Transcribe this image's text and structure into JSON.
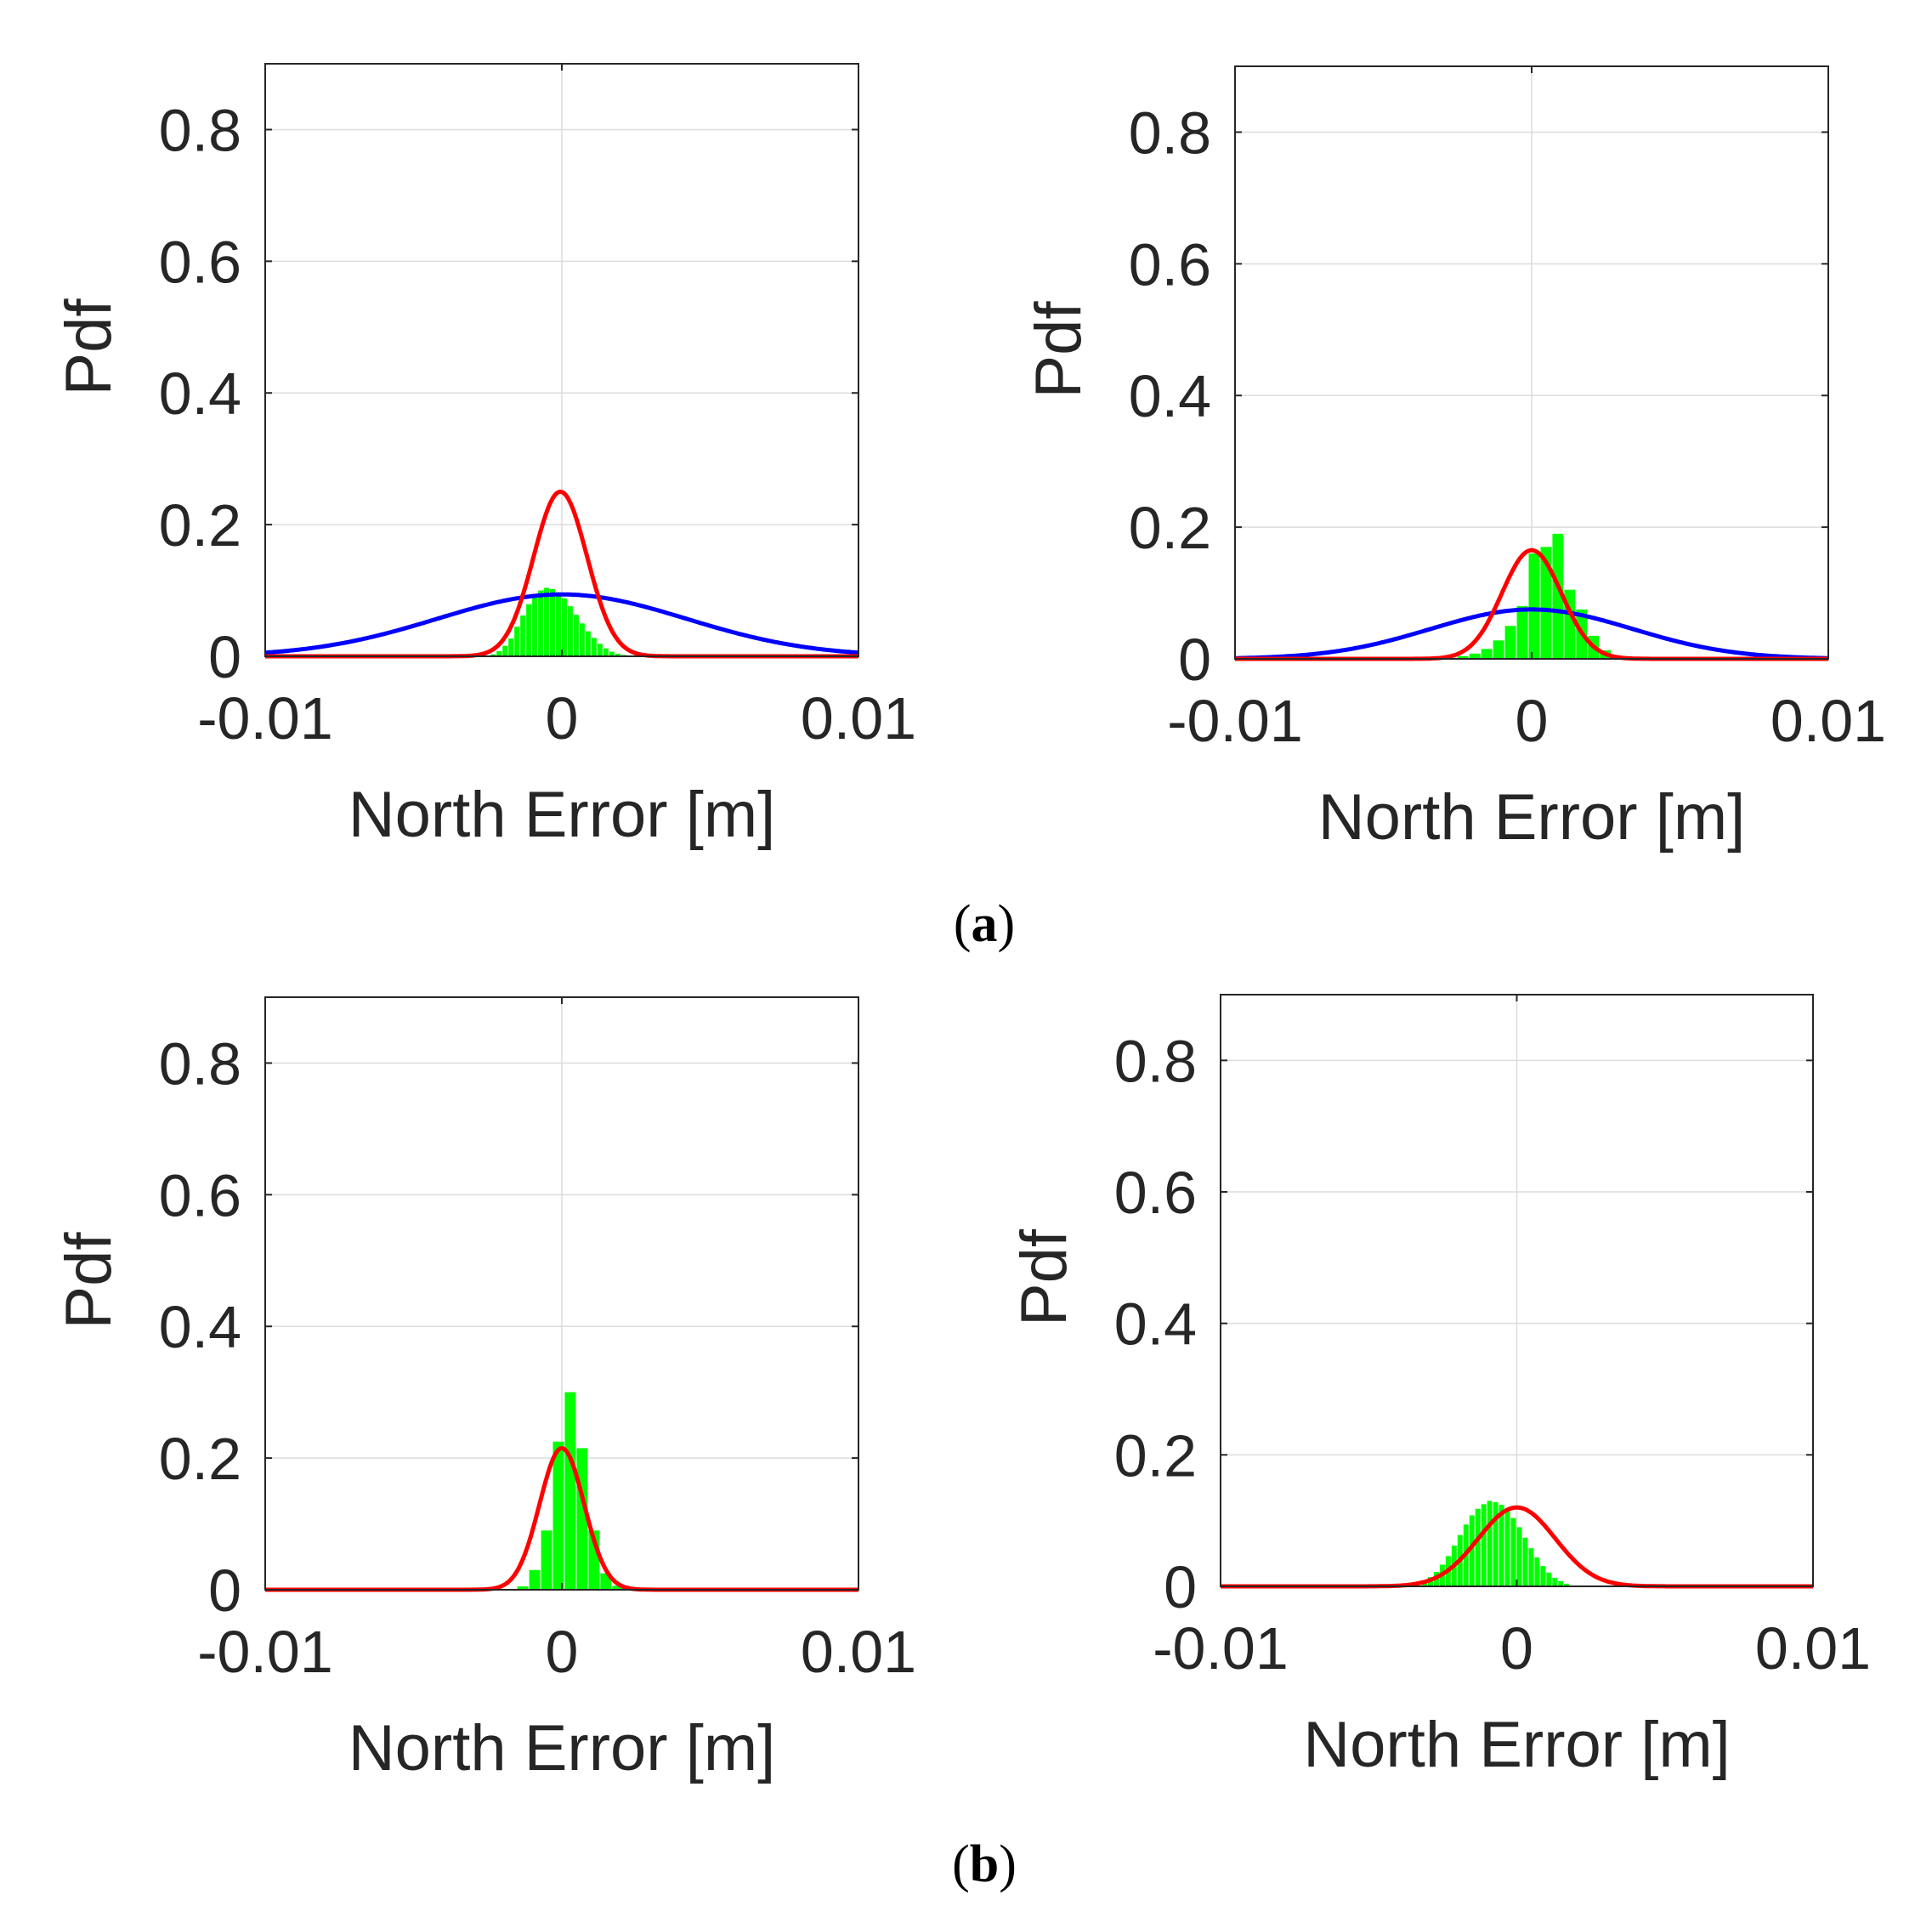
{
  "colors": {
    "histogram": "#00ff00",
    "fit_blue": "#0000ff",
    "fit_red": "#ff0000",
    "grid": "#dcdcdc",
    "axis": "#262626",
    "text": "#262626"
  },
  "captions": {
    "a": {
      "open": "(",
      "letter": "a",
      "close": ")"
    },
    "b": {
      "open": "(",
      "letter": "b",
      "close": ")"
    }
  },
  "chart_data": [
    {
      "type": "histogram",
      "panel": "a-left",
      "title": "",
      "xlabel": "North Error [m]",
      "ylabel": "Pdf",
      "xlim": [
        -0.01,
        0.01
      ],
      "ylim": [
        0,
        0.9
      ],
      "xticks": [
        -0.01,
        0,
        0.01
      ],
      "xtick_labels": [
        "-0.01",
        "0",
        "0.01"
      ],
      "yticks": [
        0,
        0.2,
        0.4,
        0.6,
        0.8
      ],
      "ytick_labels": [
        "0",
        "0.2",
        "0.4",
        "0.6",
        "0.8"
      ],
      "grid": true,
      "bins": {
        "start": -0.0024,
        "width": 0.0002,
        "values": [
          0.003,
          0.008,
          0.016,
          0.027,
          0.045,
          0.062,
          0.079,
          0.093,
          0.1,
          0.104,
          0.102,
          0.097,
          0.088,
          0.076,
          0.063,
          0.05,
          0.038,
          0.028,
          0.019,
          0.012,
          0.007,
          0.004,
          0.002,
          0.001
        ]
      },
      "series": [
        {
          "name": "blue-fit",
          "color": "#0000ff",
          "mean": 0.0,
          "sigma": 0.0042,
          "peak": 0.094
        },
        {
          "name": "red-fit",
          "color": "#ff0000",
          "mean": -5e-05,
          "sigma": 0.0009,
          "peak": 0.25
        }
      ]
    },
    {
      "type": "histogram",
      "panel": "a-right",
      "title": "",
      "xlabel": "North Error [m]",
      "ylabel": "Pdf",
      "xlim": [
        -0.01,
        0.01
      ],
      "ylim": [
        0,
        0.9
      ],
      "xticks": [
        -0.01,
        0,
        0.01
      ],
      "xtick_labels": [
        "-0.01",
        "0",
        "0.01"
      ],
      "yticks": [
        0,
        0.2,
        0.4,
        0.6,
        0.8
      ],
      "ytick_labels": [
        "0",
        "0.2",
        "0.4",
        "0.6",
        "0.8"
      ],
      "grid": true,
      "bins": {
        "start": -0.0025,
        "width": 0.0004,
        "values": [
          0.004,
          0.008,
          0.015,
          0.028,
          0.05,
          0.08,
          0.16,
          0.17,
          0.19,
          0.105,
          0.075,
          0.035,
          0.013,
          0.004
        ]
      },
      "series": [
        {
          "name": "blue-fit",
          "color": "#0000ff",
          "mean": 0.0,
          "sigma": 0.0034,
          "peak": 0.075
        },
        {
          "name": "red-fit",
          "color": "#ff0000",
          "mean": 0.0,
          "sigma": 0.001,
          "peak": 0.165
        }
      ]
    },
    {
      "type": "histogram",
      "panel": "b-left",
      "title": "",
      "xlabel": "North Error [m]",
      "ylabel": "Pdf",
      "xlim": [
        -0.01,
        0.01
      ],
      "ylim": [
        0,
        0.9
      ],
      "xticks": [
        -0.01,
        0,
        0.01
      ],
      "xtick_labels": [
        "-0.01",
        "0",
        "0.01"
      ],
      "yticks": [
        0,
        0.2,
        0.4,
        0.6,
        0.8
      ],
      "ytick_labels": [
        "0",
        "0.2",
        "0.4",
        "0.6",
        "0.8"
      ],
      "grid": true,
      "bins": {
        "start": -0.0015,
        "width": 0.0004,
        "values": [
          0.005,
          0.03,
          0.09,
          0.225,
          0.3,
          0.215,
          0.09,
          0.025,
          0.006
        ]
      },
      "series": [
        {
          "name": "red-fit",
          "color": "#ff0000",
          "mean": 0.0,
          "sigma": 0.00075,
          "peak": 0.215
        }
      ]
    },
    {
      "type": "histogram",
      "panel": "b-right",
      "title": "",
      "xlabel": "North Error [m]",
      "ylabel": "Pdf",
      "xlim": [
        -0.01,
        0.01
      ],
      "ylim": [
        0,
        0.9
      ],
      "xticks": [
        -0.01,
        0,
        0.01
      ],
      "xtick_labels": [
        "-0.01",
        "0",
        "0.01"
      ],
      "yticks": [
        0,
        0.2,
        0.4,
        0.6,
        0.8
      ],
      "ytick_labels": [
        "0",
        "0.2",
        "0.4",
        "0.6",
        "0.8"
      ],
      "grid": true,
      "bins": {
        "start": -0.0032,
        "width": 0.0002,
        "values": [
          0.008,
          0.014,
          0.022,
          0.033,
          0.046,
          0.062,
          0.078,
          0.094,
          0.108,
          0.118,
          0.125,
          0.13,
          0.128,
          0.124,
          0.116,
          0.104,
          0.09,
          0.074,
          0.058,
          0.044,
          0.031,
          0.021,
          0.013,
          0.008,
          0.004
        ]
      },
      "series": [
        {
          "name": "red-fit",
          "color": "#ff0000",
          "mean": 0.0,
          "sigma": 0.0013,
          "peak": 0.12
        }
      ]
    }
  ]
}
